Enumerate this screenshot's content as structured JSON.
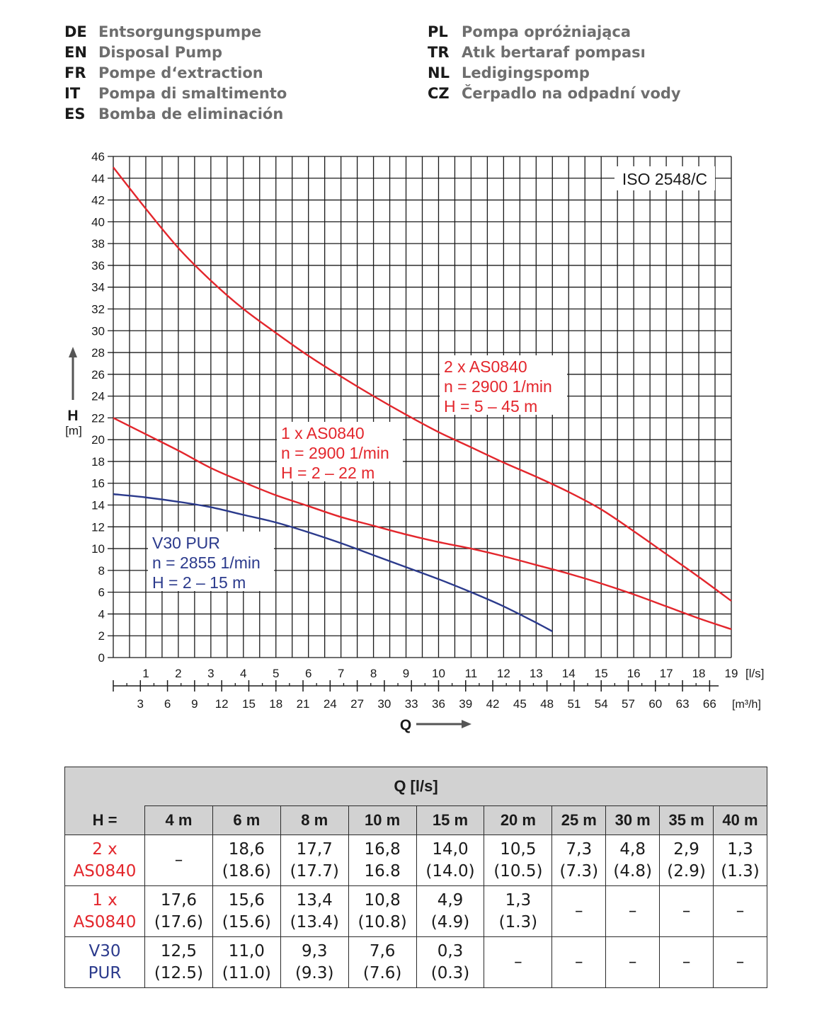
{
  "header": {
    "languages_left": [
      {
        "code": "DE",
        "name": "Entsorgungspumpe"
      },
      {
        "code": "EN",
        "name": "Disposal Pump"
      },
      {
        "code": "FR",
        "name": "Pompe d‘extraction"
      },
      {
        "code": "IT",
        "name": "Pompa di smaltimento"
      },
      {
        "code": "ES",
        "name": "Bomba de eliminación"
      }
    ],
    "languages_right": [
      {
        "code": "PL",
        "name": "Pompa opróżniająca"
      },
      {
        "code": "TR",
        "name": "Atık bertaraf pompası"
      },
      {
        "code": "NL",
        "name": "Ledigingspomp"
      },
      {
        "code": "CZ",
        "name": "Čerpadlo na odpadní vody"
      }
    ]
  },
  "chart_data": {
    "type": "line",
    "standard_label": "ISO 2548/C",
    "ylabel": "H",
    "yunit": "[m]",
    "xlabel": "Q",
    "x_unit_ls": "[l/s]",
    "x_unit_m3h": "[m³/h]",
    "xlim": [
      0,
      19
    ],
    "ylim": [
      0,
      46
    ],
    "grid": true,
    "y_ticks": [
      0,
      2,
      4,
      6,
      8,
      10,
      12,
      14,
      16,
      18,
      20,
      22,
      24,
      26,
      28,
      30,
      32,
      34,
      36,
      38,
      40,
      42,
      44,
      46
    ],
    "x_ticks_ls": [
      1,
      2,
      3,
      4,
      5,
      6,
      7,
      8,
      9,
      10,
      11,
      12,
      13,
      14,
      15,
      16,
      17,
      18,
      19
    ],
    "x_ticks_m3h": [
      3,
      6,
      9,
      12,
      15,
      18,
      21,
      24,
      27,
      30,
      33,
      36,
      39,
      42,
      45,
      48,
      51,
      54,
      57,
      60,
      63,
      66
    ],
    "series": [
      {
        "color": "#e3262c",
        "labels": [
          "2 x AS0840",
          "n = 2900 1/min",
          "H = 5 – 45 m"
        ],
        "x": [
          0,
          1,
          2,
          3,
          4,
          5,
          6,
          7,
          8,
          9,
          10,
          11,
          12,
          13,
          14,
          15,
          16,
          17,
          18,
          19
        ],
        "y": [
          45.0,
          41.2,
          37.6,
          34.6,
          32.0,
          29.8,
          27.7,
          25.8,
          24.0,
          22.3,
          20.7,
          19.3,
          17.9,
          16.6,
          15.2,
          13.6,
          11.6,
          9.5,
          7.4,
          5.2
        ]
      },
      {
        "color": "#e3262c",
        "labels": [
          "1 x AS0840",
          "n = 2900 1/min",
          "H = 2 – 22 m"
        ],
        "x": [
          0,
          1,
          2,
          3,
          4,
          5,
          6,
          7,
          8,
          9,
          10,
          11,
          12,
          13,
          14,
          15,
          16,
          17,
          18,
          19
        ],
        "y": [
          22.0,
          20.5,
          19.0,
          17.4,
          16.1,
          14.9,
          13.9,
          12.9,
          12.1,
          11.3,
          10.6,
          10.0,
          9.3,
          8.5,
          7.7,
          6.8,
          5.8,
          4.7,
          3.6,
          2.6
        ]
      },
      {
        "color": "#2b3a8c",
        "labels": [
          "V30 PUR",
          "n = 2855 1/min",
          "H = 2 – 15 m"
        ],
        "x": [
          0,
          1,
          2,
          3,
          4,
          5,
          6,
          7,
          8,
          9,
          10,
          11,
          12,
          13,
          13.5
        ],
        "y": [
          15.0,
          14.7,
          14.3,
          13.8,
          13.1,
          12.4,
          11.5,
          10.5,
          9.4,
          8.3,
          7.2,
          6.0,
          4.7,
          3.2,
          2.4
        ]
      }
    ]
  },
  "table": {
    "q_header": "Q [l/s]",
    "h_label": "H =",
    "columns": [
      "4 m",
      "6 m",
      "8 m",
      "10 m",
      "15 m",
      "20 m",
      "25 m",
      "30 m",
      "35 m",
      "40 m"
    ],
    "rows": [
      {
        "label": [
          "2 x",
          "AS0840"
        ],
        "color": "#e3262c",
        "cells": [
          [
            "–",
            ""
          ],
          [
            "18,6",
            "(18.6)"
          ],
          [
            "17,7",
            "(17.7)"
          ],
          [
            "16,8",
            "16.8"
          ],
          [
            "14,0",
            "(14.0)"
          ],
          [
            "10,5",
            "(10.5)"
          ],
          [
            "7,3",
            "(7.3)"
          ],
          [
            "4,8",
            "(4.8)"
          ],
          [
            "2,9",
            "(2.9)"
          ],
          [
            "1,3",
            "(1.3)"
          ]
        ]
      },
      {
        "label": [
          "1 x",
          "AS0840"
        ],
        "color": "#e3262c",
        "cells": [
          [
            "17,6",
            "(17.6)"
          ],
          [
            "15,6",
            "(15.6)"
          ],
          [
            "13,4",
            "(13.4)"
          ],
          [
            "10,8",
            "(10.8)"
          ],
          [
            "4,9",
            "(4.9)"
          ],
          [
            "1,3",
            "(1.3)"
          ],
          [
            "–",
            ""
          ],
          [
            "–",
            ""
          ],
          [
            "–",
            ""
          ],
          [
            "–",
            ""
          ]
        ]
      },
      {
        "label": [
          "V30",
          "PUR"
        ],
        "color": "#2b3a8c",
        "cells": [
          [
            "12,5",
            "(12.5)"
          ],
          [
            "11,0",
            "(11.0)"
          ],
          [
            "9,3",
            "(9.3)"
          ],
          [
            "7,6",
            "(7.6)"
          ],
          [
            "0,3",
            "(0.3)"
          ],
          [
            "–",
            ""
          ],
          [
            "–",
            ""
          ],
          [
            "–",
            ""
          ],
          [
            "–",
            ""
          ],
          [
            "–",
            ""
          ]
        ]
      }
    ]
  }
}
